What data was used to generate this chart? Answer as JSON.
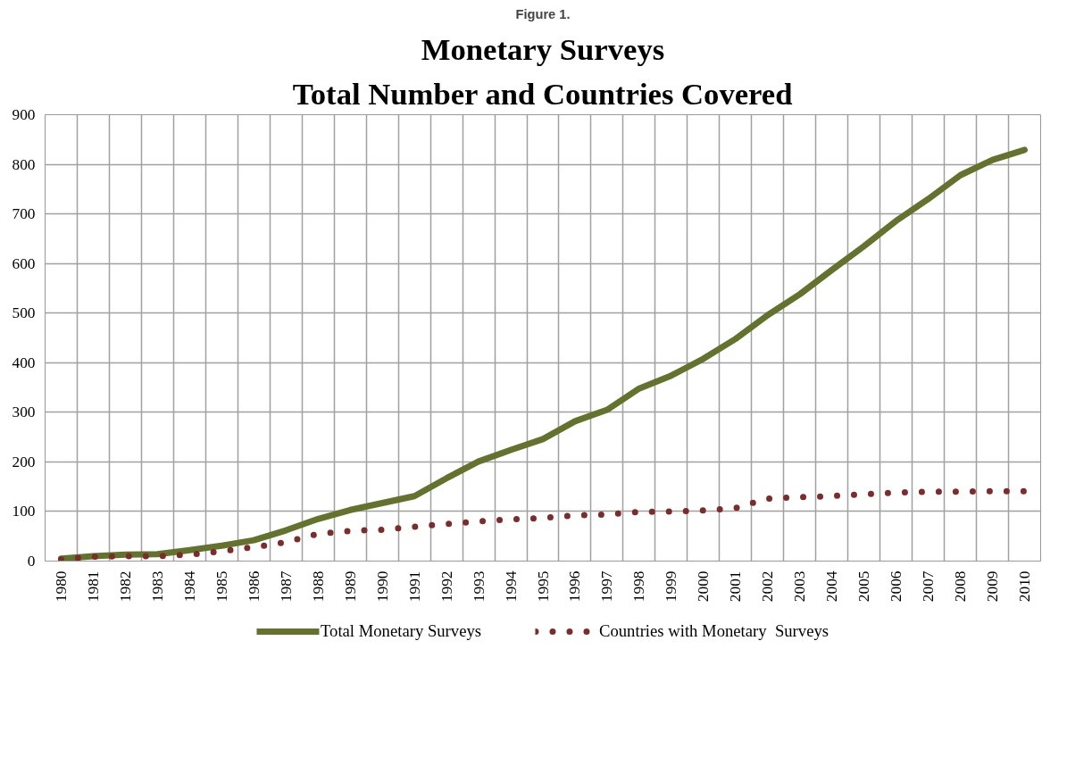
{
  "chart_data": {
    "type": "line",
    "title": "Monetary Surveys",
    "subtitle": "Total Number and Countries Covered",
    "annotations": [
      "Figure 1."
    ],
    "categories": [
      "1980",
      "1981",
      "1982",
      "1983",
      "1984",
      "1985",
      "1986",
      "1987",
      "1988",
      "1989",
      "1990",
      "1991",
      "1992",
      "1993",
      "1994",
      "1995",
      "1996",
      "1997",
      "1998",
      "1999",
      "2000",
      "2001",
      "2002",
      "2003",
      "2004",
      "2005",
      "2006",
      "2007",
      "2008",
      "2009",
      "2010"
    ],
    "series": [
      {
        "name": "Total Monetary Surveys",
        "color": "#63732f",
        "line_style": "solid",
        "values": [
          5,
          10,
          13,
          14,
          22,
          31,
          42,
          62,
          85,
          103,
          117,
          131,
          167,
          201,
          224,
          246,
          282,
          305,
          348,
          374,
          408,
          448,
          496,
          538,
          587,
          635,
          686,
          730,
          778,
          809,
          829
        ]
      },
      {
        "name": "Countries with Monetary  Surveys",
        "color": "#7b2c2c",
        "line_style": "dotted",
        "values": [
          3,
          9,
          10,
          10,
          13,
          20,
          28,
          38,
          55,
          61,
          63,
          69,
          75,
          80,
          84,
          87,
          92,
          94,
          99,
          100,
          102,
          107,
          126,
          129,
          131,
          135,
          138,
          140,
          140,
          141,
          141
        ]
      }
    ],
    "ylim": [
      0,
      900
    ],
    "yticks": [
      0,
      100,
      200,
      300,
      400,
      500,
      600,
      700,
      800,
      900
    ],
    "grid": true,
    "legend": "bottom"
  }
}
